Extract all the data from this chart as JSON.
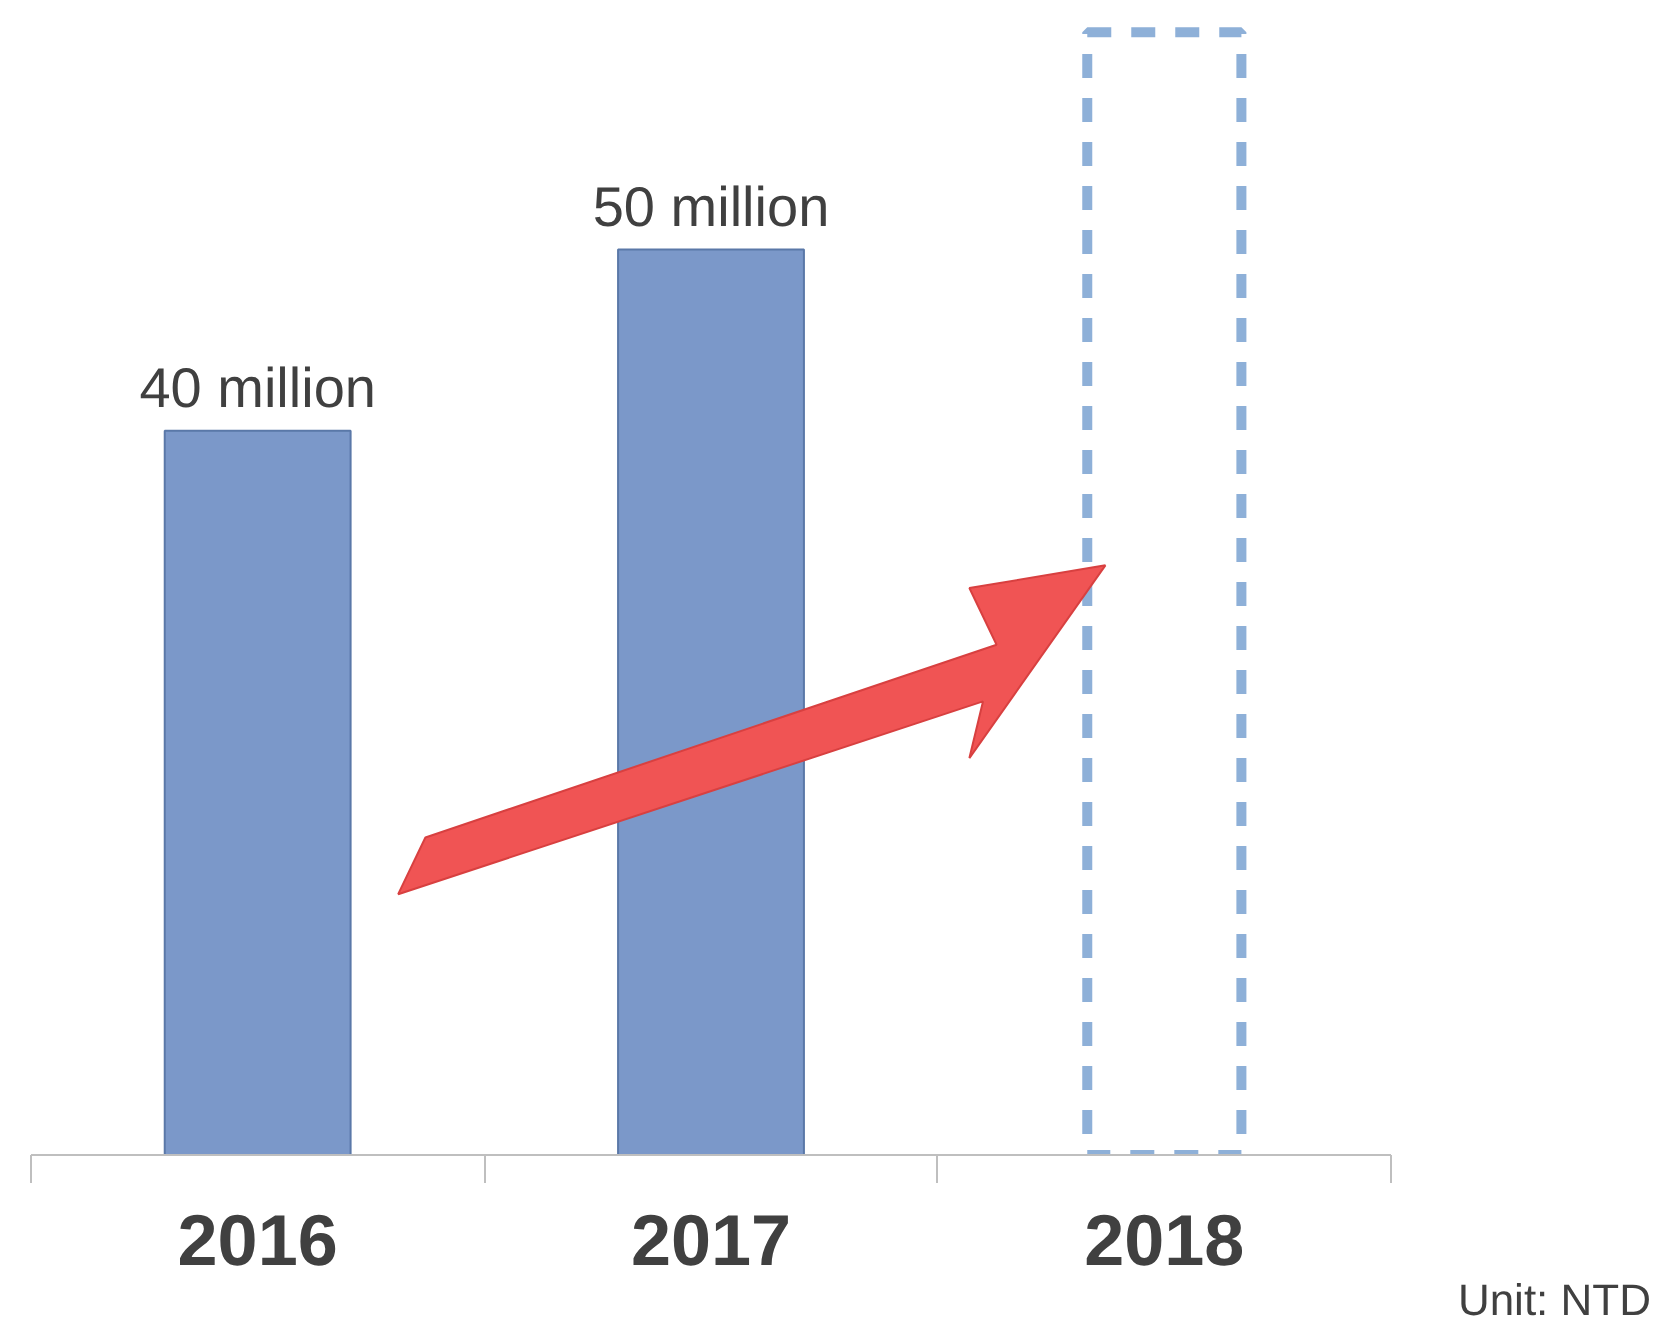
{
  "chart_data": {
    "type": "bar",
    "categories": [
      "2016",
      "2017",
      "2018"
    ],
    "series": [
      {
        "color": "#7b98c9",
        "values": [
          40,
          50,
          null
        ],
        "value_labels": [
          "40 million",
          "50 million",
          null
        ]
      },
      {
        "color": "#8eb0d8",
        "values": [
          null,
          null,
          62
        ],
        "line_style": "dashed",
        "value_labels": [
          null,
          null,
          null
        ]
      }
    ],
    "annotations": [
      "Unit: NTD"
    ],
    "grid": false,
    "tick_labels": "x"
  }
}
